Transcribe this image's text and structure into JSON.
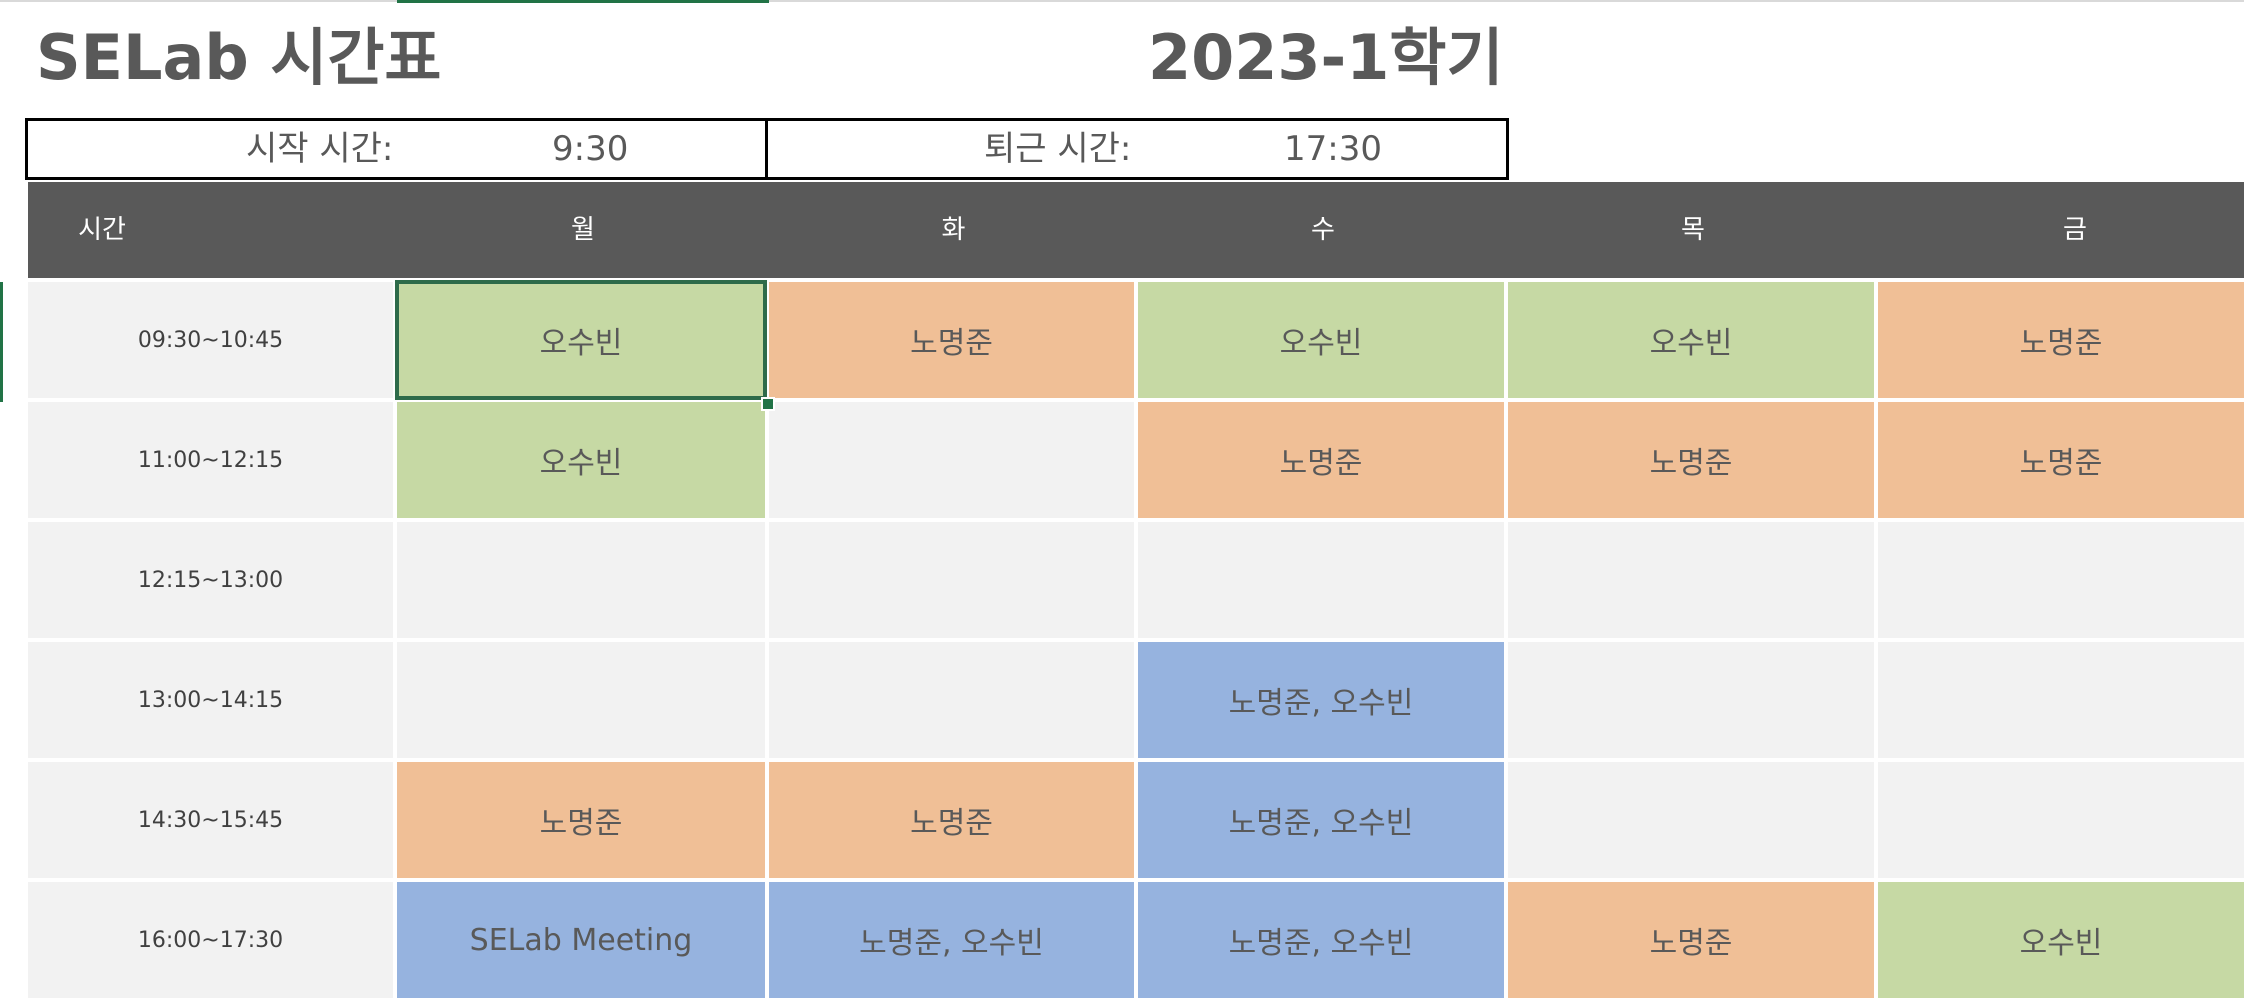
{
  "title": "SELab 시간표",
  "semester": "2023-1학기",
  "start": {
    "label": "시작 시간:",
    "value": "9:30"
  },
  "end": {
    "label": "퇴근 시간:",
    "value": "17:30"
  },
  "header": {
    "time_label": "시간",
    "days": [
      "월",
      "화",
      "수",
      "목",
      "금"
    ]
  },
  "colors": {
    "header_bg": "#595959",
    "empty": "#f2f2f2",
    "green": "#c6d9a4",
    "orange": "#f0bf96",
    "blue": "#96b3df",
    "selection": "#217346"
  },
  "rows": [
    {
      "time": "09:30~10:45",
      "cells": [
        "오수빈",
        "노명준",
        "오수빈",
        "오수빈",
        "노명준"
      ]
    },
    {
      "time": "11:00~12:15",
      "cells": [
        "오수빈",
        "",
        "노명준",
        "노명준",
        "노명준"
      ]
    },
    {
      "time": "12:15~13:00",
      "cells": [
        "",
        "",
        "",
        "",
        ""
      ]
    },
    {
      "time": "13:00~14:15",
      "cells": [
        "",
        "",
        "노명준, 오수빈",
        "",
        ""
      ]
    },
    {
      "time": "14:30~15:45",
      "cells": [
        "노명준",
        "노명준",
        "노명준, 오수빈",
        "",
        ""
      ]
    },
    {
      "time": "16:00~17:30",
      "cells": [
        "SELab Meeting",
        "노명준, 오수빈",
        "노명준, 오수빈",
        "노명준",
        "오수빈"
      ]
    }
  ],
  "selected_cell": "월 09:30~10:45"
}
